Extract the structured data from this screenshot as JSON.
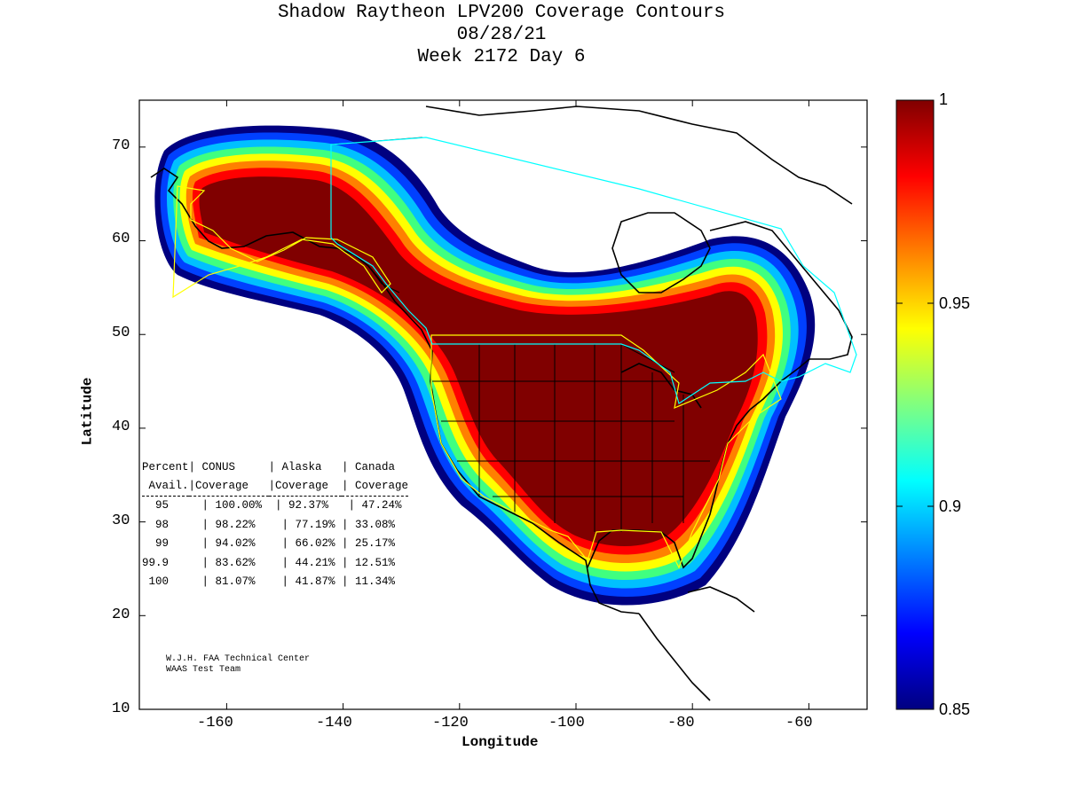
{
  "title": {
    "line1": "Shadow Raytheon LPV200 Coverage Contours",
    "line2": "08/28/21",
    "line3": "Week 2172 Day 6"
  },
  "axes": {
    "xlabel": "Longitude",
    "ylabel": "Latitude",
    "xlim": [
      -175,
      -50
    ],
    "ylim": [
      10,
      75
    ],
    "xticks": [
      "-160",
      "-140",
      "-120",
      "-100",
      "-80",
      "-60"
    ],
    "yticks": [
      "70",
      "60",
      "50",
      "40",
      "30",
      "20",
      "10"
    ]
  },
  "colorbar": {
    "min": 0.85,
    "max": 1,
    "ticks": [
      "1",
      "0.95",
      "0.9",
      "0.85"
    ],
    "colors": [
      "#800000",
      "#ff0000",
      "#ff8000",
      "#ffff00",
      "#80ff80",
      "#00ffff",
      "#0080ff",
      "#0000ff",
      "#000080"
    ]
  },
  "stats_table": {
    "header1": [
      "Percent",
      "| CONUS   ",
      "| Alaska  ",
      "| Canada"
    ],
    "header2": [
      " Avail.",
      "|Coverage ",
      "|Coverage ",
      "| Coverage"
    ],
    "rows": [
      [
        "  95  ",
        "  | 100.00% ",
        " | 92.37% ",
        " | 47.24%"
      ],
      [
        "  98  ",
        "  | 98.22% ",
        "  | 77.19% ",
        "| 33.08%"
      ],
      [
        "  99  ",
        "  | 94.02% ",
        "  | 66.02% ",
        "| 25.17%"
      ],
      [
        "99.9  ",
        "  | 83.62% ",
        "  | 44.21% ",
        "| 12.51%"
      ],
      [
        " 100  ",
        "  | 81.07% ",
        "  | 41.87% ",
        "| 11.34%"
      ]
    ]
  },
  "credits": {
    "line1": "W.J.H. FAA Technical Center",
    "line2": "WAAS Test Team"
  }
}
